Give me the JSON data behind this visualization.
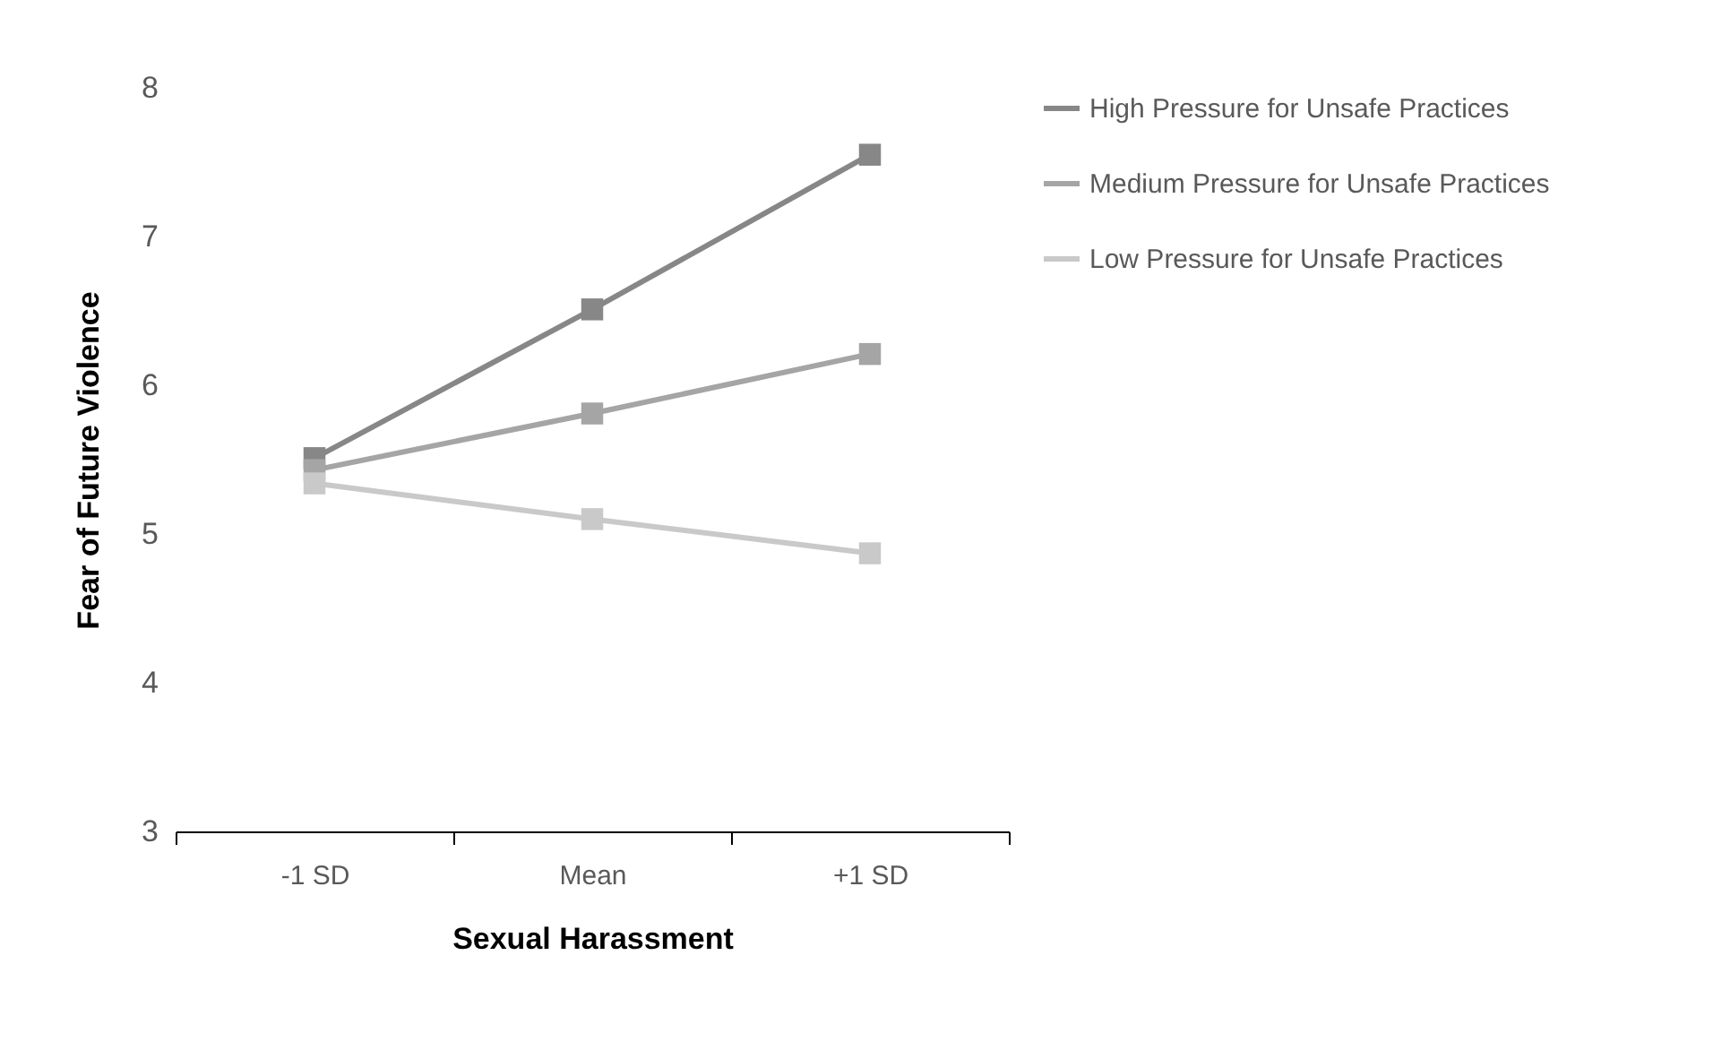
{
  "chart_data": {
    "type": "line",
    "xlabel": "Sexual Harassment",
    "ylabel": "Fear of Future Violence",
    "categories": [
      "-1 SD",
      "Mean",
      "+1 SD"
    ],
    "series": [
      {
        "name": "High Pressure for Unsafe Practices",
        "color": "#878787",
        "values": [
          5.51,
          6.51,
          7.55
        ]
      },
      {
        "name": "Medium Pressure for Unsafe Practices",
        "color": "#a5a5a5",
        "values": [
          5.43,
          5.81,
          6.21
        ]
      },
      {
        "name": "Low Pressure for Unsafe Practices",
        "color": "#c9c9c9",
        "values": [
          5.34,
          5.1,
          4.87
        ]
      }
    ],
    "ylim": [
      3,
      8
    ],
    "yticks": [
      3,
      4,
      5,
      6,
      7,
      8
    ],
    "grid": false,
    "legend": "right",
    "marker": "square",
    "line_style": "solid"
  }
}
